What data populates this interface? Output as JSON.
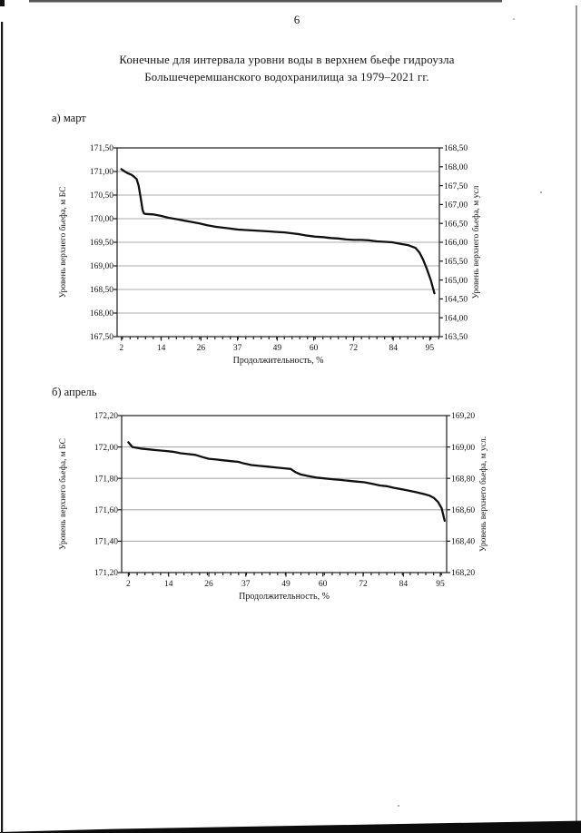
{
  "page": {
    "number": "6",
    "title_line1": "Конечные для интервала уровни воды в верхнем бьефе гидроузла",
    "title_line2": "Большечеремшанского водохранилища за 1979–2021 гг."
  },
  "chart_data": [
    {
      "type": "line",
      "section_label": "а) март",
      "xlabel": "Продолжительность, %",
      "ylabel_left": "Уровень верхнего бьефа, м БС",
      "ylabel_right": "Уровень верхнего бьефа, м усл",
      "x_tick_labels": [
        "2",
        "14",
        "26",
        "37",
        "49",
        "60",
        "72",
        "84",
        "95"
      ],
      "x_tick_values": [
        2,
        14,
        26,
        37,
        49,
        60,
        72,
        84,
        95
      ],
      "x_domain": [
        0.7,
        97.9
      ],
      "x_minor_tick_start": 2.3,
      "x_minor_tick_step": 2.326,
      "grid": "horizontal",
      "legend": "none",
      "y_left_ticks": [
        "171,50",
        "171,00",
        "170,50",
        "170,00",
        "169,50",
        "169,00",
        "168,50",
        "168,00",
        "167,50"
      ],
      "y_left_domain": [
        167.5,
        171.5
      ],
      "y_left_step": 0.5,
      "y_right_ticks": [
        "168,50",
        "168,00",
        "167,50",
        "167,00",
        "166,50",
        "166,00",
        "165,50",
        "165,00",
        "164,50",
        "164,00",
        "163,50"
      ],
      "y_right_domain": [
        163.5,
        168.5
      ],
      "series_points": [
        [
          2,
          171.05
        ],
        [
          3,
          171.0
        ],
        [
          4,
          170.96
        ],
        [
          5,
          170.93
        ],
        [
          5.8,
          170.89
        ],
        [
          6.6,
          170.84
        ],
        [
          7.2,
          170.7
        ],
        [
          7.8,
          170.45
        ],
        [
          8.4,
          170.18
        ],
        [
          8.8,
          170.11
        ],
        [
          9.3,
          170.1
        ],
        [
          11.6,
          170.09
        ],
        [
          13.9,
          170.06
        ],
        [
          16.2,
          170.02
        ],
        [
          18.6,
          169.99
        ],
        [
          20.9,
          169.96
        ],
        [
          23.2,
          169.93
        ],
        [
          25.6,
          169.9
        ],
        [
          27.9,
          169.86
        ],
        [
          30.2,
          169.83
        ],
        [
          32.6,
          169.81
        ],
        [
          34.9,
          169.79
        ],
        [
          37.2,
          169.77
        ],
        [
          39.5,
          169.76
        ],
        [
          41.9,
          169.75
        ],
        [
          44.2,
          169.74
        ],
        [
          46.5,
          169.73
        ],
        [
          48.8,
          169.72
        ],
        [
          51.2,
          169.71
        ],
        [
          53.5,
          169.69
        ],
        [
          55.8,
          169.67
        ],
        [
          58.1,
          169.64
        ],
        [
          60.5,
          169.62
        ],
        [
          62.8,
          169.61
        ],
        [
          65.1,
          169.59
        ],
        [
          67.4,
          169.58
        ],
        [
          69.8,
          169.56
        ],
        [
          72.1,
          169.55
        ],
        [
          74.4,
          169.55
        ],
        [
          76.7,
          169.54
        ],
        [
          79.1,
          169.52
        ],
        [
          81.4,
          169.51
        ],
        [
          83.7,
          169.5
        ],
        [
          86.0,
          169.47
        ],
        [
          88.4,
          169.44
        ],
        [
          90.7,
          169.38
        ],
        [
          91.9,
          169.28
        ],
        [
          93.0,
          169.13
        ],
        [
          94.2,
          168.92
        ],
        [
          95.3,
          168.7
        ],
        [
          96.4,
          168.42
        ]
      ]
    },
    {
      "type": "line",
      "section_label": "б) апрель",
      "xlabel": "Продолжительность, %",
      "ylabel_left": "Уровень верхнего бьефа, м БС",
      "ylabel_right": "Уровень верхнего бьефа, м  усл.",
      "x_tick_labels": [
        "2",
        "14",
        "26",
        "37",
        "49",
        "60",
        "72",
        "84",
        "95"
      ],
      "x_tick_values": [
        2,
        14,
        26,
        37,
        49,
        60,
        72,
        84,
        95
      ],
      "x_domain": [
        0,
        96.9
      ],
      "x_minor_tick_start": 2.3,
      "x_minor_tick_step": 2.326,
      "grid": "horizontal",
      "legend": "none",
      "y_left_ticks": [
        "172,20",
        "172,00",
        "171,80",
        "171,60",
        "171,40",
        "171,20"
      ],
      "y_left_domain": [
        171.2,
        172.2
      ],
      "y_left_step": 0.2,
      "y_right_ticks": [
        "169,20",
        "169,00",
        "168,80",
        "168,60",
        "168,40",
        "168,20"
      ],
      "y_right_domain": [
        168.2,
        169.2
      ],
      "series_points": [
        [
          2,
          172.03
        ],
        [
          3.2,
          172.0
        ],
        [
          5.6,
          171.99
        ],
        [
          8,
          171.985
        ],
        [
          10.4,
          171.98
        ],
        [
          12.8,
          171.975
        ],
        [
          15.2,
          171.97
        ],
        [
          17.6,
          171.96
        ],
        [
          19.8,
          171.955
        ],
        [
          22,
          171.95
        ],
        [
          24.2,
          171.935
        ],
        [
          26,
          171.925
        ],
        [
          28.2,
          171.92
        ],
        [
          30.4,
          171.915
        ],
        [
          32.6,
          171.91
        ],
        [
          34.8,
          171.905
        ],
        [
          36.5,
          171.895
        ],
        [
          38.7,
          171.885
        ],
        [
          41,
          171.88
        ],
        [
          43.4,
          171.875
        ],
        [
          45.8,
          171.87
        ],
        [
          48.2,
          171.865
        ],
        [
          50.4,
          171.86
        ],
        [
          51.8,
          171.84
        ],
        [
          53.4,
          171.825
        ],
        [
          55.6,
          171.815
        ],
        [
          58,
          171.805
        ],
        [
          60.4,
          171.8
        ],
        [
          62.8,
          171.795
        ],
        [
          65.2,
          171.79
        ],
        [
          67.6,
          171.785
        ],
        [
          70,
          171.78
        ],
        [
          72.4,
          171.775
        ],
        [
          74.8,
          171.765
        ],
        [
          77,
          171.755
        ],
        [
          79,
          171.75
        ],
        [
          81.2,
          171.74
        ],
        [
          83.6,
          171.73
        ],
        [
          86,
          171.72
        ],
        [
          88.2,
          171.71
        ],
        [
          90.2,
          171.7
        ],
        [
          91.8,
          171.69
        ],
        [
          93.1,
          171.675
        ],
        [
          94.3,
          171.65
        ],
        [
          95.4,
          171.61
        ],
        [
          96.3,
          171.53
        ]
      ]
    }
  ]
}
